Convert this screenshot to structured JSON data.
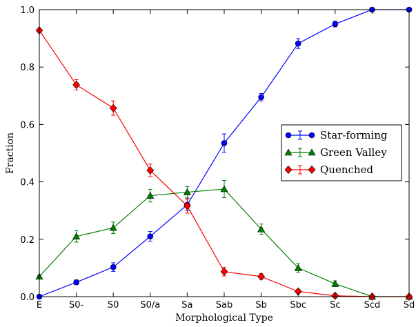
{
  "chart_data": {
    "type": "line",
    "title": "",
    "xlabel": "Morphological Type",
    "ylabel": "Fraction",
    "categories": [
      "E",
      "S0-",
      "S0",
      "S0/a",
      "Sa",
      "Sab",
      "Sb",
      "Sbc",
      "Sc",
      "Scd",
      "Sd"
    ],
    "ylim": [
      0,
      1.0
    ],
    "yticks": [
      "0.0",
      "0.2",
      "0.4",
      "0.6",
      "0.8",
      "1.0"
    ],
    "grid": false,
    "legend_position": "center-right",
    "series": [
      {
        "name": "Star-forming",
        "color": "#0000ff",
        "marker": "circle",
        "values": [
          0.0,
          0.05,
          0.103,
          0.21,
          0.32,
          0.535,
          0.695,
          0.882,
          0.95,
          1.0,
          1.0
        ],
        "errors": [
          0.003,
          0.008,
          0.015,
          0.017,
          0.02,
          0.032,
          0.013,
          0.017,
          0.01,
          0.003,
          0.003
        ]
      },
      {
        "name": "Green Valley",
        "color": "#008000",
        "marker": "triangle",
        "values": [
          0.07,
          0.21,
          0.24,
          0.352,
          0.364,
          0.375,
          0.235,
          0.1,
          0.045,
          0.0,
          0.0
        ],
        "errors": [
          0.003,
          0.02,
          0.02,
          0.022,
          0.02,
          0.03,
          0.018,
          0.015,
          0.01,
          0.003,
          0.003
        ]
      },
      {
        "name": "Quenched",
        "color": "#ff0000",
        "marker": "diamond",
        "values": [
          0.928,
          0.738,
          0.657,
          0.44,
          0.316,
          0.087,
          0.07,
          0.018,
          0.003,
          0.0,
          0.0
        ],
        "errors": [
          0.003,
          0.018,
          0.025,
          0.022,
          0.025,
          0.015,
          0.01,
          0.006,
          0.004,
          0.003,
          0.003
        ]
      }
    ]
  }
}
